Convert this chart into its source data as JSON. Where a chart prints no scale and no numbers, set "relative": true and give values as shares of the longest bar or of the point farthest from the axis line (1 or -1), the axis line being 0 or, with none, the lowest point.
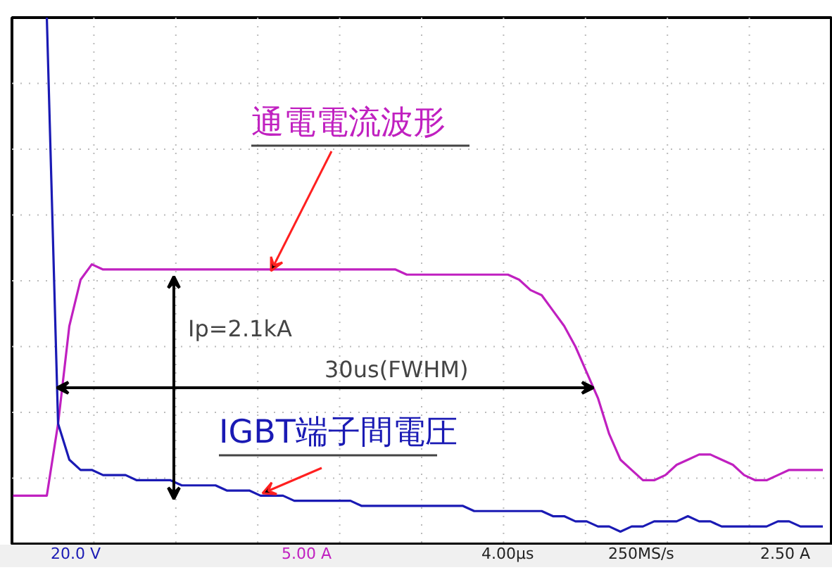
{
  "chart_data": {
    "type": "line",
    "relative": true,
    "grid": true,
    "tick_labels": false,
    "line_style": "solid",
    "marker": "none",
    "categories": [
      null,
      null,
      null,
      null,
      null,
      null,
      null,
      null,
      null,
      null,
      null,
      null,
      null,
      null,
      null,
      null,
      null,
      null,
      null,
      null,
      null,
      null,
      null,
      null,
      null,
      null,
      null,
      null,
      null,
      null,
      null,
      null,
      null,
      null,
      null,
      null,
      null,
      null,
      null,
      null,
      null,
      null,
      null,
      null,
      null,
      null,
      null,
      null,
      null,
      null,
      null,
      null,
      null,
      null,
      null,
      null,
      null,
      null,
      null,
      null,
      null,
      null,
      null,
      null,
      null,
      null,
      null,
      null,
      null,
      null,
      null,
      null,
      null
    ],
    "series": [
      {
        "name": "通電電流波形",
        "color": "#c020c0",
        "values": [
          0.07,
          0.07,
          0.07,
          0.07,
          0.21,
          0.4,
          0.49,
          0.52,
          0.51,
          0.51,
          0.51,
          0.51,
          0.51,
          0.51,
          0.51,
          0.51,
          0.51,
          0.51,
          0.51,
          0.51,
          0.51,
          0.51,
          0.51,
          0.51,
          0.51,
          0.51,
          0.51,
          0.51,
          0.51,
          0.51,
          0.51,
          0.51,
          0.51,
          0.51,
          0.51,
          0.5,
          0.5,
          0.5,
          0.5,
          0.5,
          0.5,
          0.5,
          0.5,
          0.5,
          0.5,
          0.49,
          0.47,
          0.46,
          0.43,
          0.4,
          0.36,
          0.31,
          0.26,
          0.19,
          0.14,
          0.12,
          0.1,
          0.1,
          0.11,
          0.13,
          0.14,
          0.15,
          0.15,
          0.14,
          0.13,
          0.11,
          0.1,
          0.1,
          0.11,
          0.12,
          0.12,
          0.12,
          0.12
        ]
      },
      {
        "name": "IGBT端子間電圧",
        "color": "#1a1ab4",
        "values": [
          null,
          null,
          null,
          1.0,
          0.21,
          0.14,
          0.12,
          0.12,
          0.11,
          0.11,
          0.11,
          0.1,
          0.1,
          0.1,
          0.1,
          0.09,
          0.09,
          0.09,
          0.09,
          0.08,
          0.08,
          0.08,
          0.07,
          0.07,
          0.07,
          0.06,
          0.06,
          0.06,
          0.06,
          0.06,
          0.06,
          0.05,
          0.05,
          0.05,
          0.05,
          0.05,
          0.05,
          0.05,
          0.05,
          0.05,
          0.05,
          0.04,
          0.04,
          0.04,
          0.04,
          0.04,
          0.04,
          0.04,
          0.03,
          0.03,
          0.02,
          0.02,
          0.01,
          0.01,
          0.0,
          0.01,
          0.01,
          0.02,
          0.02,
          0.02,
          0.03,
          0.02,
          0.02,
          0.01,
          0.01,
          0.01,
          0.01,
          0.01,
          0.02,
          0.02,
          0.01,
          0.01,
          0.01
        ]
      }
    ],
    "annotations": [
      "Ip=2.1kA",
      "30us(FWHM)",
      "20.0 V",
      "5.00 A",
      "4.00µs",
      "250MS/s",
      "2.50 A"
    ]
  }
}
